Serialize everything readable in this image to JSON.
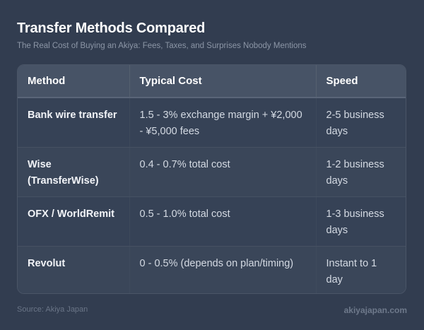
{
  "header": {
    "title": "Transfer Methods Compared",
    "subtitle": "The Real Cost of Buying an Akiya: Fees, Taxes, and Surprises Nobody Mentions"
  },
  "table": {
    "columns": [
      "Method",
      "Typical Cost",
      "Speed"
    ],
    "rows": [
      {
        "method": "Bank wire transfer",
        "cost": "1.5 - 3% exchange margin + ¥2,000 - ¥5,000 fees",
        "speed": "2-5 business days"
      },
      {
        "method": "Wise (TransferWise)",
        "cost": "0.4 - 0.7% total cost",
        "speed": "1-2 business days"
      },
      {
        "method": "OFX / WorldRemit",
        "cost": "0.5 - 1.0% total cost",
        "speed": "1-3 business days"
      },
      {
        "method": "Revolut",
        "cost": "0 - 0.5% (depends on plan/timing)",
        "speed": "Instant to 1 day"
      }
    ]
  },
  "footer": {
    "source": "Source: Akiya Japan",
    "site": "akiyajapan.com"
  },
  "colors": {
    "background": "#323d50",
    "header_row": "#475366",
    "row_odd": "#364256",
    "row_even": "#3a4659",
    "title": "#ffffff",
    "subtitle": "#8c96a6"
  }
}
